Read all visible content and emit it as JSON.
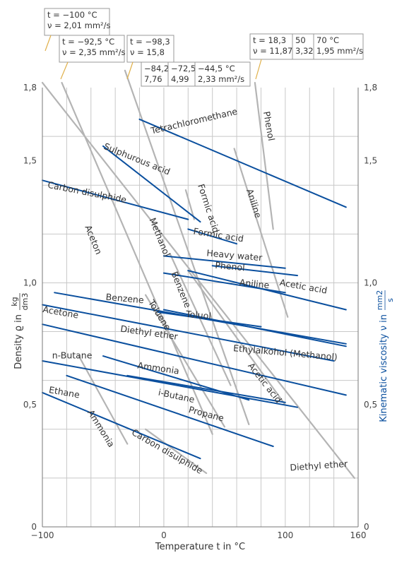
{
  "chart_data": {
    "type": "line",
    "xlabel": "Temperature t in °C",
    "ylabel_left": "Density ϱ in",
    "ylabel_left_unit_num": "kg",
    "ylabel_left_unit_den": "dm3",
    "ylabel_right": "Kinematic viscosity ν in",
    "ylabel_right_unit_num": "mm2",
    "ylabel_right_unit_den": "s",
    "xlim": [
      -100,
      160
    ],
    "ylim": [
      0,
      1.8
    ],
    "x_ticks": [
      "−100",
      "0",
      "100",
      "160"
    ],
    "x_tick_values": [
      -100,
      0,
      100,
      160
    ],
    "y_ticks": [
      "0",
      "0,5",
      "1,0",
      "1,5",
      "1,8"
    ],
    "y_tick_values": [
      0,
      0.5,
      1.0,
      1.5,
      1.8
    ],
    "x_grid": [
      -80,
      -60,
      -40,
      -20,
      0,
      20,
      40,
      60,
      80,
      100,
      120,
      140
    ],
    "y_grid": [
      0.2,
      0.4,
      0.6,
      0.8,
      1.0,
      1.2,
      1.4,
      1.6
    ],
    "colors": {
      "density": "#0a4f9e",
      "viscosity": "#b4b4b4",
      "axis_label_right": "#0a4f9e"
    },
    "density_series": [
      {
        "name": "Tetrachloromethane",
        "points": [
          [
            -20,
            1.67
          ],
          [
            150,
            1.31
          ]
        ],
        "label_pos": [
          -10,
          1.61
        ],
        "label_rot": -13
      },
      {
        "name": "Sulphurous acid",
        "points": [
          [
            -50,
            1.56
          ],
          [
            30,
            1.25
          ]
        ],
        "label_pos": [
          -50,
          1.55
        ],
        "label_rot": 22
      },
      {
        "name": "Formic acid",
        "points": [
          [
            20,
            1.22
          ],
          [
            60,
            1.16
          ]
        ],
        "label_pos": [
          24,
          1.2
        ],
        "label_rot": 9
      },
      {
        "name": "Carbon disulphide",
        "points": [
          [
            -100,
            1.42
          ],
          [
            20,
            1.26
          ]
        ],
        "label_pos": [
          -96,
          1.39
        ],
        "label_rot": 11
      },
      {
        "name": "Heavy water",
        "points": [
          [
            0,
            1.11
          ],
          [
            100,
            1.06
          ]
        ],
        "label_pos": [
          35,
          1.11
        ],
        "label_rot": 5
      },
      {
        "name": "Phenol",
        "points": [
          [
            40,
            1.07
          ],
          [
            110,
            1.03
          ]
        ],
        "label_pos": [
          42,
          1.06
        ],
        "label_rot": 5
      },
      {
        "name": "Aniline",
        "points": [
          [
            0,
            1.04
          ],
          [
            100,
            0.96
          ]
        ],
        "label_pos": [
          62,
          0.99
        ],
        "label_rot": 6
      },
      {
        "name": "Acetic acid",
        "points": [
          [
            20,
            1.05
          ],
          [
            150,
            0.89
          ]
        ],
        "label_pos": [
          95,
          0.99
        ],
        "label_rot": 10
      },
      {
        "name": "Benzene",
        "points": [
          [
            -5,
            0.88
          ],
          [
            80,
            0.82
          ]
        ],
        "label_pos": [
          -48,
          0.93
        ],
        "label_rot": 5
      },
      {
        "name": "Toluol",
        "points": [
          [
            -90,
            0.96
          ],
          [
            150,
            0.75
          ]
        ],
        "label_pos": [
          18,
          0.86
        ],
        "label_rot": 5
      },
      {
        "name": "Ethylalkohol (Methanol)",
        "points": [
          [
            0,
            0.89
          ],
          [
            150,
            0.74
          ]
        ],
        "label_pos": [
          57,
          0.72
        ],
        "label_rot": 5
      },
      {
        "name": "Acetone",
        "points": [
          [
            -100,
            0.91
          ],
          [
            140,
            0.68
          ]
        ],
        "label_pos": [
          -100,
          0.88
        ],
        "label_rot": 10
      },
      {
        "name": "Diethyl ether",
        "points": [
          [
            -100,
            0.83
          ],
          [
            150,
            0.54
          ]
        ],
        "label_pos": [
          -36,
          0.8
        ],
        "label_rot": 8
      },
      {
        "name": "Ammonia",
        "points": [
          [
            -50,
            0.7
          ],
          [
            70,
            0.52
          ]
        ],
        "label_pos": [
          -22,
          0.65
        ],
        "label_rot": 8
      },
      {
        "name": "i-Butane",
        "points": [
          [
            -30,
            0.62
          ],
          [
            100,
            0.51
          ]
        ],
        "label_pos": [
          -5,
          0.54
        ],
        "label_rot": 12
      },
      {
        "name": "n-Butane",
        "points": [
          [
            -100,
            0.68
          ],
          [
            110,
            0.49
          ]
        ],
        "label_pos": [
          -92,
          0.69
        ],
        "label_rot": 0
      },
      {
        "name": "Propane",
        "points": [
          [
            -80,
            0.62
          ],
          [
            90,
            0.33
          ]
        ],
        "label_pos": [
          20,
          0.47
        ],
        "label_rot": 15
      },
      {
        "name": "Ethane",
        "points": [
          [
            -100,
            0.55
          ],
          [
            30,
            0.28
          ]
        ],
        "label_pos": [
          -95,
          0.55
        ],
        "label_rot": 10
      }
    ],
    "viscosity_series": [
      {
        "name": "Aceton",
        "points": [
          [
            -84,
            1.82
          ],
          [
            40,
            0.38
          ]
        ],
        "label_pos": [
          -65,
          1.23
        ],
        "label_rot": 68
      },
      {
        "name": "Methanol",
        "points": [
          [
            -32,
            1.87
          ],
          [
            70,
            0.42
          ]
        ],
        "label_pos": [
          -12,
          1.26
        ],
        "label_rot": 68
      },
      {
        "name": "Benzene",
        "points": [
          [
            5,
            1.12
          ],
          [
            55,
            0.58
          ]
        ],
        "label_pos": [
          6,
          1.04
        ],
        "label_rot": 68
      },
      {
        "name": "Toluene",
        "points": [
          [
            -15,
            0.95
          ],
          [
            50,
            0.41
          ]
        ],
        "label_pos": [
          -13,
          0.92
        ],
        "label_rot": 58
      },
      {
        "name": "Formic acid",
        "points": [
          [
            18,
            1.38
          ],
          [
            25,
            1.26
          ]
        ],
        "label_pos": [
          28,
          1.4
        ],
        "label_rot": 72
      },
      {
        "name": "Aniline",
        "points": [
          [
            58,
            1.55
          ],
          [
            102,
            0.86
          ]
        ],
        "label_pos": [
          68,
          1.38
        ],
        "label_rot": 72
      },
      {
        "name": "Phenol",
        "points": [
          [
            75,
            1.82
          ],
          [
            90,
            1.22
          ]
        ],
        "label_pos": [
          82,
          1.7
        ],
        "label_rot": 80
      },
      {
        "name": "Acetic acid",
        "points": [
          [
            20,
            1.05
          ],
          [
            100,
            0.5
          ]
        ],
        "label_pos": [
          69,
          0.66
        ],
        "label_rot": 52
      },
      {
        "name": "Ammonia",
        "points": [
          [
            -70,
            0.7
          ],
          [
            -30,
            0.34
          ]
        ],
        "label_pos": [
          -63,
          0.47
        ],
        "label_rot": 58
      },
      {
        "name": "Carbon disulphide",
        "points": [
          [
            -15,
            0.4
          ],
          [
            35,
            0.22
          ]
        ],
        "label_pos": [
          -27,
          0.38
        ],
        "label_rot": 30
      },
      {
        "name": "Diethyl ether",
        "points": [
          [
            -100,
            1.82
          ],
          [
            157,
            0.2
          ]
        ],
        "label_pos": [
          104,
          0.23
        ],
        "label_rot": -4
      }
    ],
    "callouts": [
      {
        "lines": [
          "t = −100 °C",
          "ν = 2,01 mm²/s"
        ]
      },
      {
        "lines": [
          "t = −92,5 °C",
          "ν = 2,35 mm²/s"
        ]
      },
      {
        "lines": [
          "t = −98,3",
          "ν = 15,8"
        ]
      },
      {
        "lines": [
          "−84,2",
          "7,76"
        ]
      },
      {
        "lines": [
          "−72,5",
          "4,99"
        ]
      },
      {
        "lines": [
          "−44,5 °C",
          "2,33   mm²/s"
        ]
      },
      {
        "lines": [
          "t = 18,3",
          "ν = 11,87"
        ]
      },
      {
        "lines": [
          "50",
          "3,32"
        ]
      },
      {
        "lines": [
          "70 °C",
          "1,95 mm²/s"
        ]
      }
    ]
  }
}
